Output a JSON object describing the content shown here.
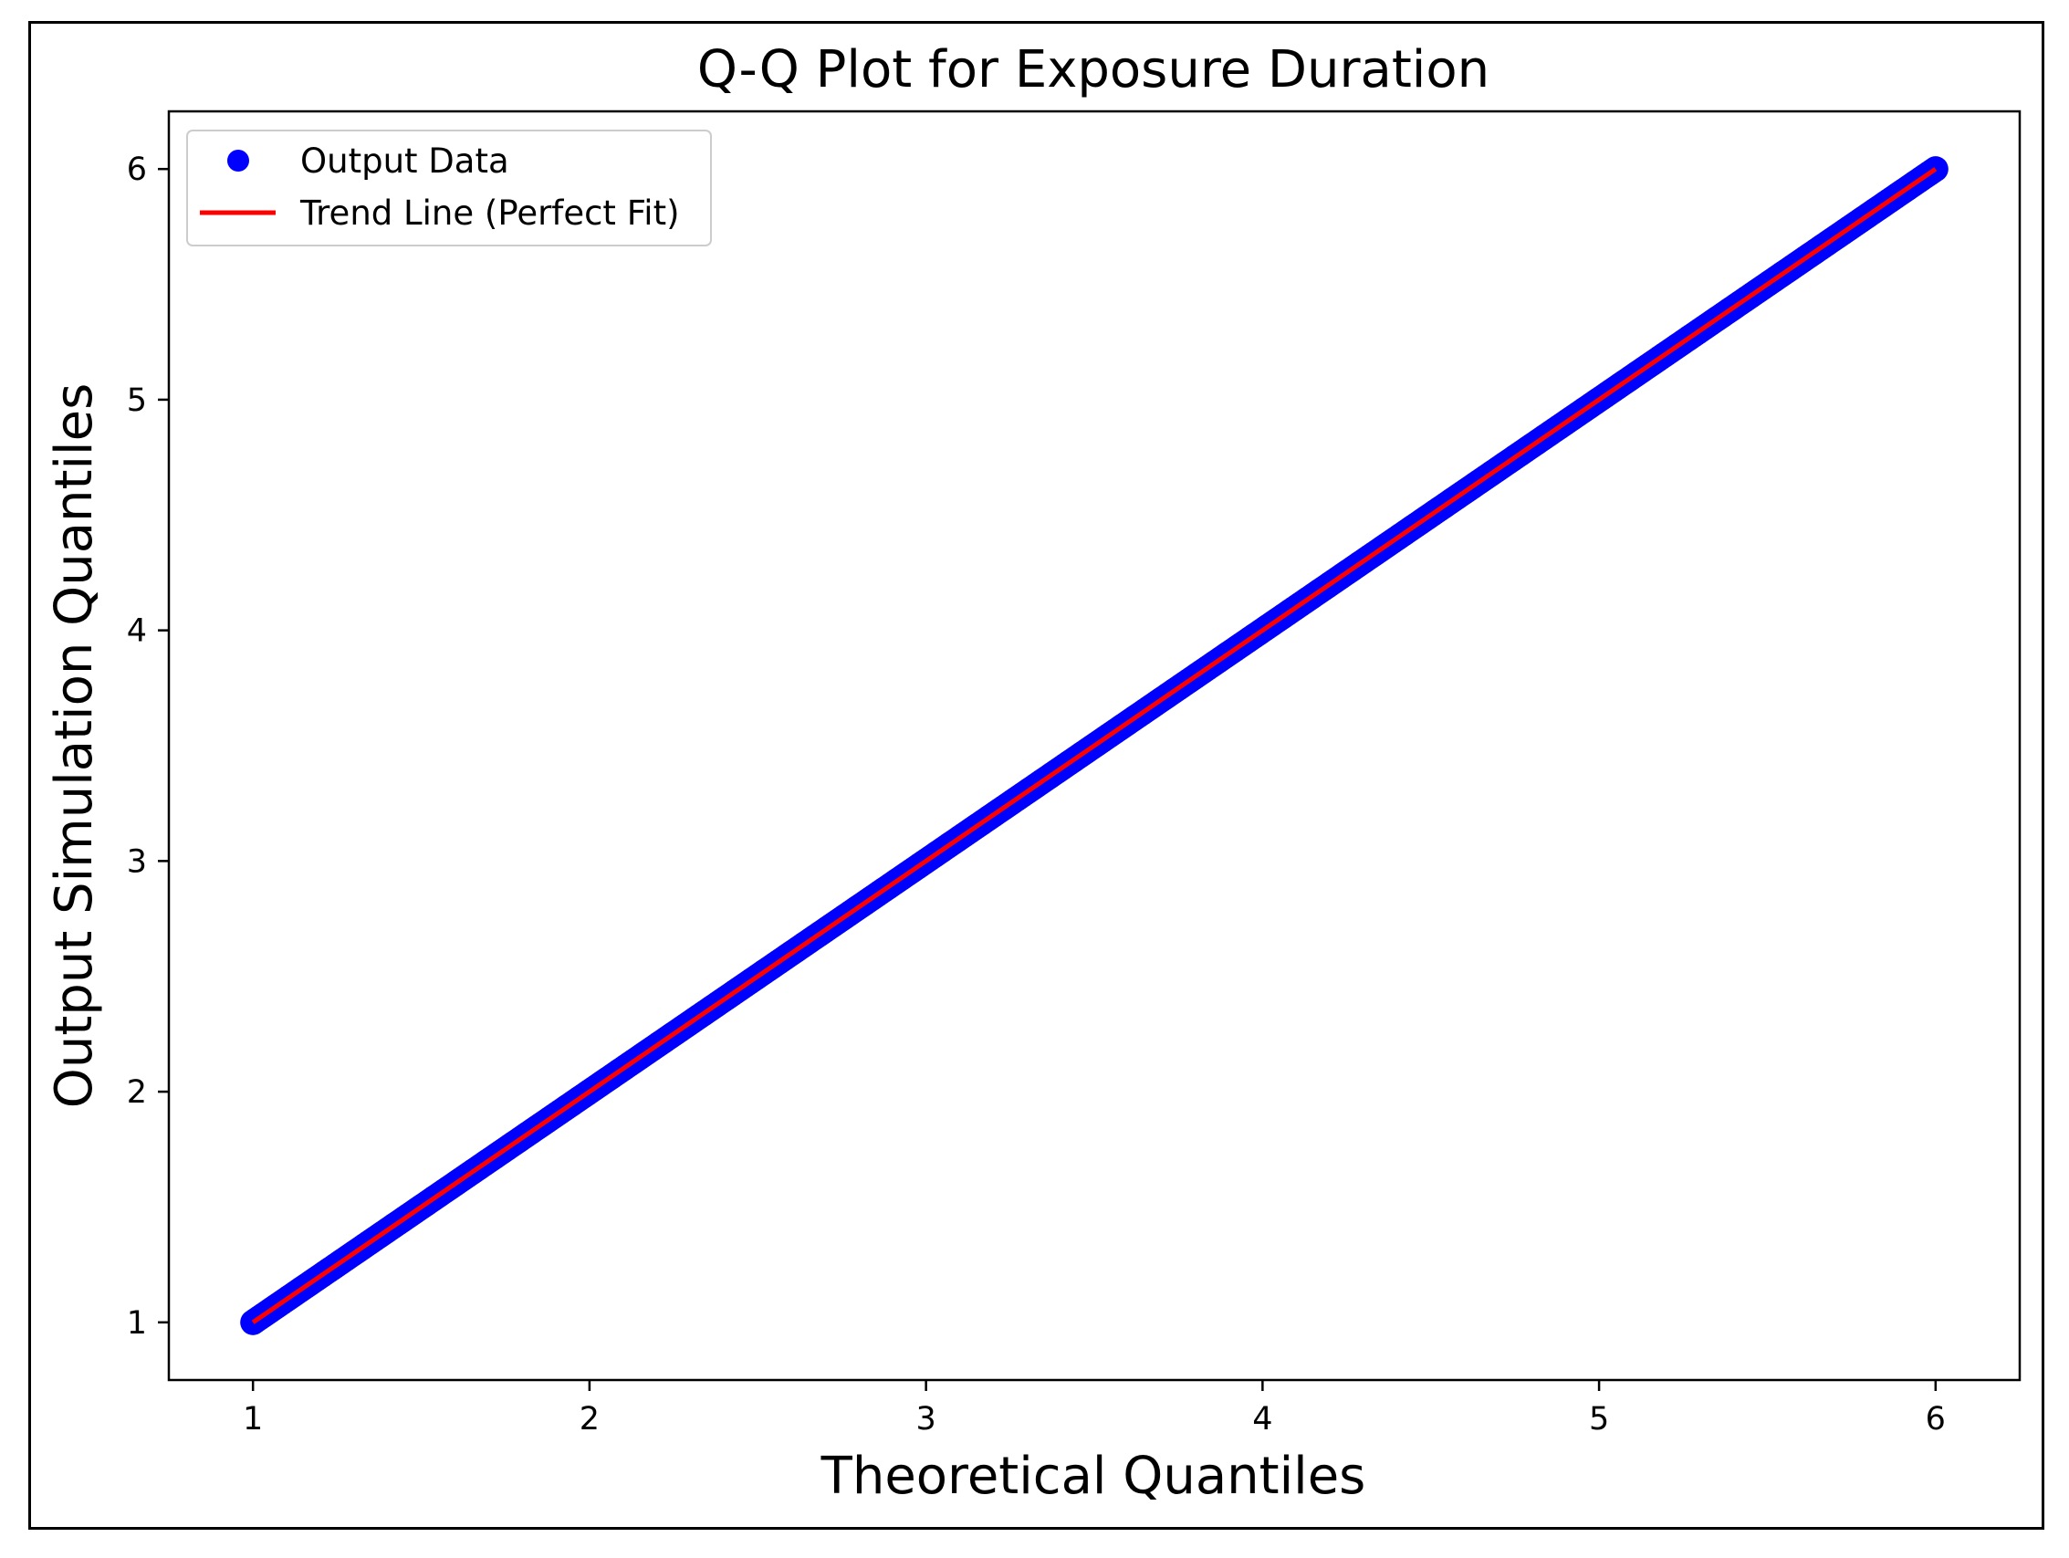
{
  "chart_data": {
    "type": "scatter",
    "title": "Q-Q Plot for Exposure Duration",
    "xlabel": "Theoretical Quantiles",
    "ylabel": "Output Simulation Quantiles",
    "xlim": [
      0.75,
      6.25
    ],
    "ylim": [
      0.75,
      6.25
    ],
    "xticks": [
      "1",
      "2",
      "3",
      "4",
      "5",
      "6"
    ],
    "yticks": [
      "1",
      "2",
      "3",
      "4",
      "5",
      "6"
    ],
    "grid": false,
    "legend_position": "top-left",
    "series": [
      {
        "name": "Output Data",
        "kind": "points",
        "color": "#0000ff",
        "x": [
          1.0,
          1.25,
          1.5,
          1.75,
          2.0,
          2.25,
          2.5,
          2.75,
          3.0,
          3.25,
          3.5,
          3.75,
          4.0,
          4.25,
          4.5,
          4.75,
          5.0,
          5.25,
          5.5,
          5.75,
          6.0
        ],
        "y": [
          1.0,
          1.25,
          1.5,
          1.75,
          2.0,
          2.25,
          2.5,
          2.75,
          3.0,
          3.25,
          3.5,
          3.75,
          4.0,
          4.25,
          4.5,
          4.75,
          5.0,
          5.25,
          5.5,
          5.75,
          6.0
        ]
      },
      {
        "name": "Trend Line (Perfect Fit)",
        "kind": "line",
        "color": "#ff0000",
        "x": [
          1,
          6
        ],
        "y": [
          1,
          6
        ]
      }
    ]
  }
}
